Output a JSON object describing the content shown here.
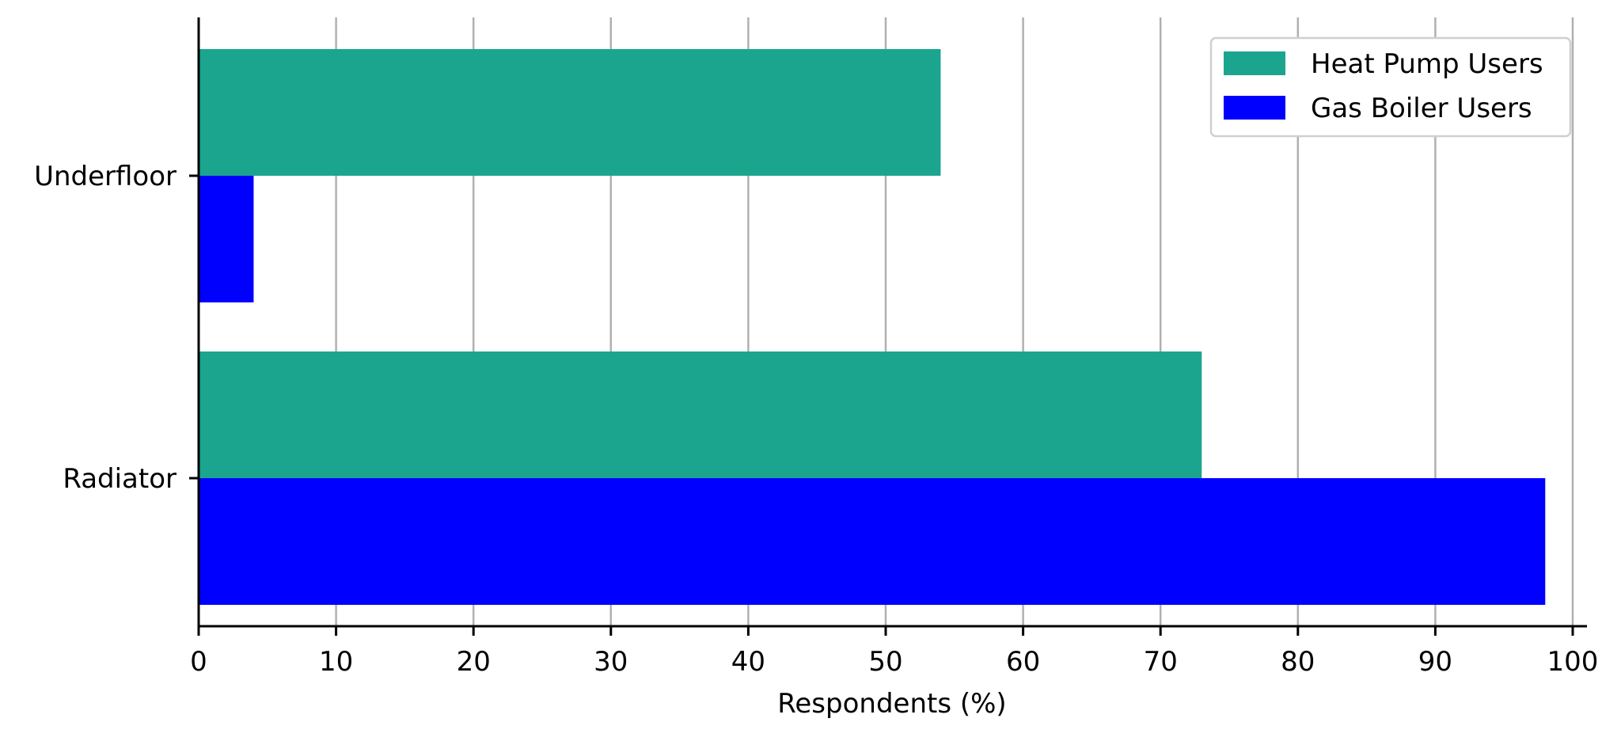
{
  "chart_data": {
    "type": "bar",
    "orientation": "horizontal",
    "categories": [
      "Underfloor",
      "Radiator"
    ],
    "series": [
      {
        "name": "Heat Pump Users",
        "values": [
          54,
          73
        ],
        "color": "#1ba58e"
      },
      {
        "name": "Gas Boiler Users",
        "values": [
          4,
          98
        ],
        "color": "#0000ff"
      }
    ],
    "xlabel": "Respondents (%)",
    "ylabel": "",
    "xlim": [
      0,
      100
    ],
    "xticks": [
      "0",
      "10",
      "20",
      "30",
      "40",
      "50",
      "60",
      "70",
      "80",
      "90",
      "100"
    ],
    "grid": "vertical",
    "legend_position": "top-right"
  }
}
